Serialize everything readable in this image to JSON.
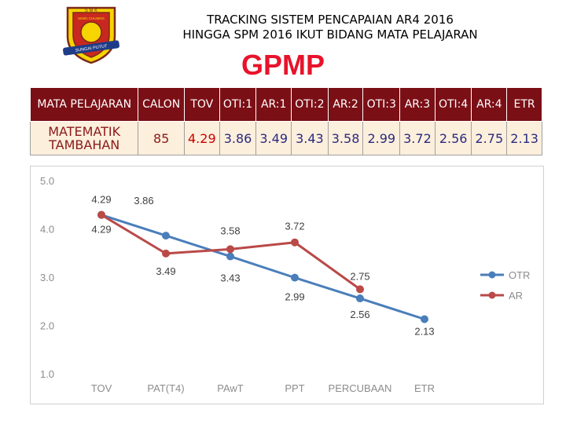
{
  "header": {
    "title_line1": "TRACKING SISTEM PENCAPAIAN AR4 2016",
    "title_line2": "HINGGA SPM 2016 IKUT BIDANG MATA PELAJARAN",
    "big_title": "GPMP"
  },
  "logo": {
    "top_text": "S M K",
    "mid_text": "SIMIN CHUMNG",
    "bottom_text": "SUNGAI PUTUT"
  },
  "table": {
    "headers": [
      "MATA PELAJARAN",
      "CALON",
      "TOV",
      "OTI:1",
      "AR:1",
      "OTI:2",
      "AR:2",
      "OTI:3",
      "AR:3",
      "OTI:4",
      "AR:4",
      "ETR"
    ],
    "subject_line1": "MATEMATIK",
    "subject_line2": "TAMBAHAN",
    "calon": "85",
    "values": [
      "4.29",
      "3.86",
      "3.49",
      "3.43",
      "3.58",
      "2.99",
      "3.72",
      "2.56",
      "2.75",
      "2.13"
    ]
  },
  "chart_data": {
    "type": "line",
    "categories": [
      "TOV",
      "PAT(T4)",
      "PAwT",
      "PPT",
      "PERCUBAAN",
      "ETR"
    ],
    "ylim": [
      1.0,
      5.0
    ],
    "yticks": [
      "1.0",
      "2.0",
      "3.0",
      "4.0",
      "5.0"
    ],
    "legend_position": "right",
    "series": [
      {
        "name": "OTR",
        "color": "#4a7ebb",
        "values": [
          4.29,
          3.86,
          3.43,
          2.99,
          2.56,
          2.13
        ],
        "labels": [
          "4.29",
          "3.86",
          "3.43",
          "2.99",
          "2.56",
          "2.13"
        ]
      },
      {
        "name": "AR",
        "color": "#b94a48",
        "values": [
          4.29,
          3.49,
          3.58,
          3.72,
          2.75,
          null
        ],
        "labels": [
          "4.29",
          "3.49",
          "3.58",
          "3.72",
          "2.75",
          ""
        ]
      }
    ]
  }
}
